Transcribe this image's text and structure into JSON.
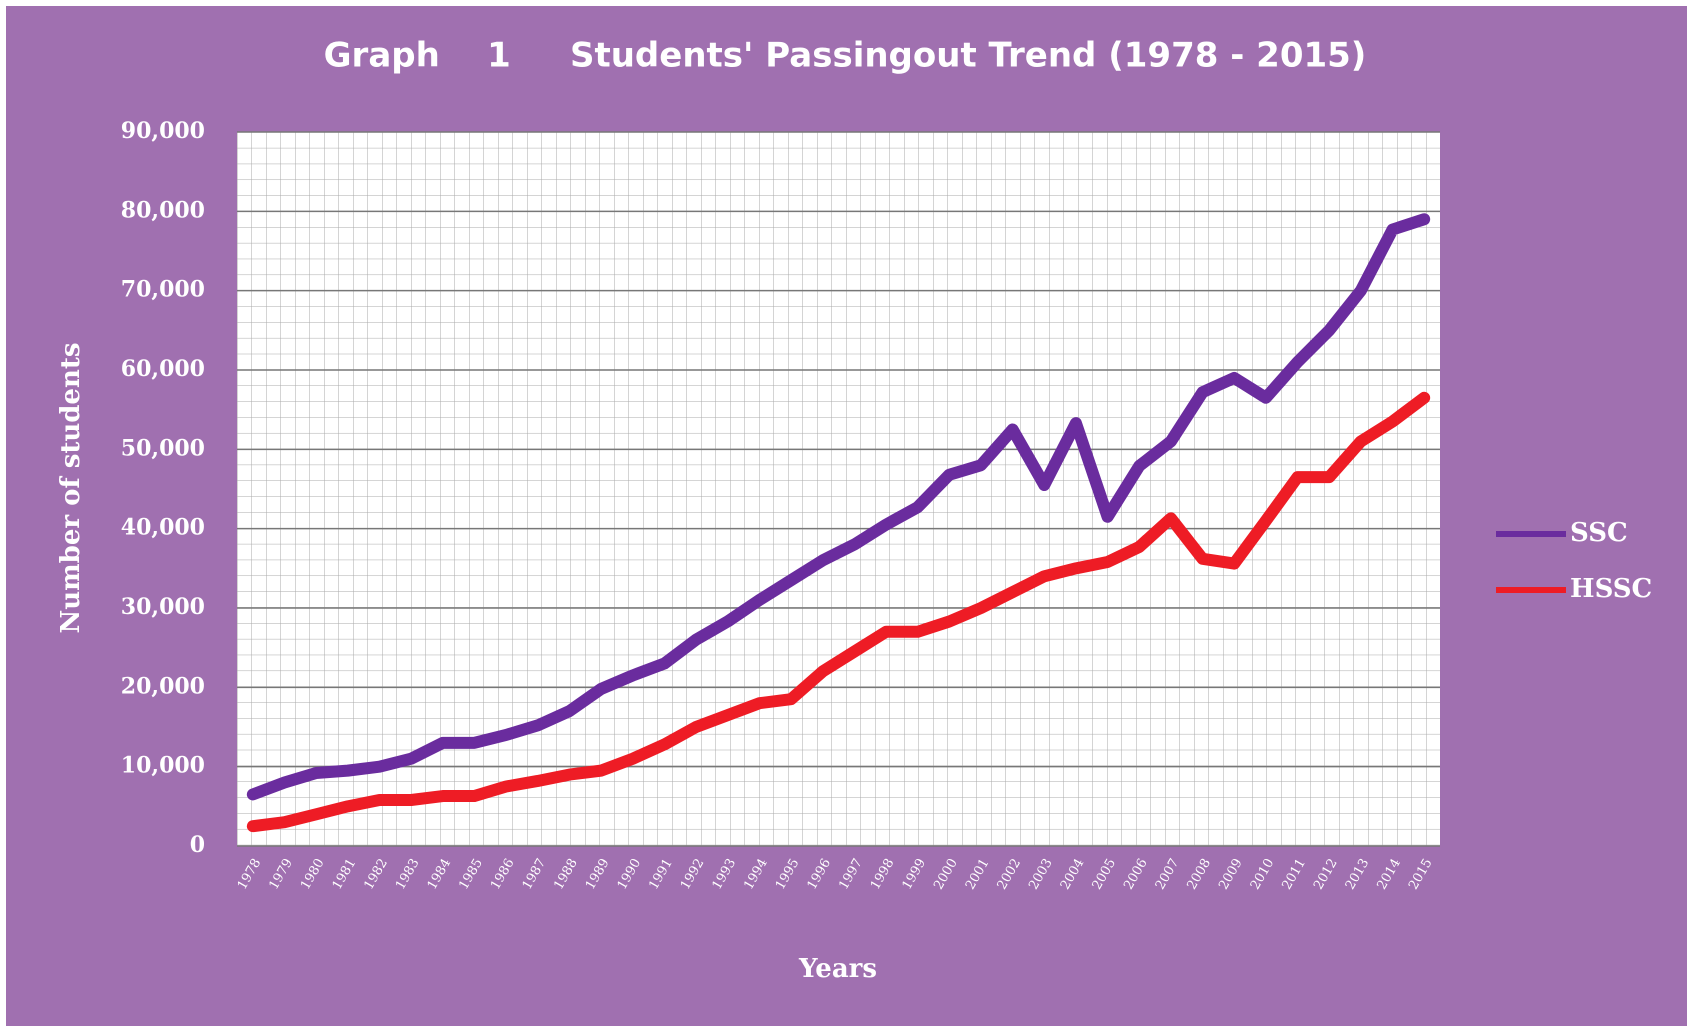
{
  "chart_data": {
    "type": "line",
    "title": "Graph    1     Students' Passingout Trend (1978 - 2015)",
    "y_label": "Number of students",
    "x_label": "Years",
    "categories": [
      "1978",
      "1979",
      "1980",
      "1981",
      "1982",
      "1983",
      "1984",
      "1985",
      "1986",
      "1987",
      "1988",
      "1989",
      "1990",
      "1991",
      "1992",
      "1993",
      "1994",
      "1995",
      "1996",
      "1997",
      "1998",
      "1999",
      "2000",
      "2001",
      "2002",
      "2003",
      "2004",
      "2005",
      "2006",
      "2007",
      "2008",
      "2009",
      "2010",
      "2011",
      "2012",
      "2013",
      "2014",
      "2015"
    ],
    "series": [
      {
        "name": "SSC",
        "color": "#6a2c9e",
        "values": [
          6500,
          8000,
          9200,
          9500,
          10000,
          11000,
          13000,
          13000,
          14000,
          15200,
          17000,
          19800,
          21500,
          23000,
          26000,
          28300,
          31000,
          33500,
          36000,
          38000,
          40500,
          42700,
          46800,
          48000,
          52500,
          45500,
          53300,
          41500,
          47900,
          51000,
          57200,
          59000,
          56500,
          61000,
          65000,
          70000,
          77700,
          79000
        ]
      },
      {
        "name": "HSSC",
        "color": "#ee1c25",
        "values": [
          2500,
          3000,
          4000,
          5000,
          5800,
          5800,
          6300,
          6300,
          7500,
          8200,
          9000,
          9500,
          11000,
          12800,
          15000,
          16500,
          18000,
          18500,
          22000,
          24500,
          27000,
          27000,
          28300,
          30000,
          32000,
          34000,
          35000,
          35800,
          37700,
          41300,
          36200,
          35600,
          41000,
          46500,
          46500,
          51000,
          53500,
          56500
        ]
      }
    ],
    "ylim": [
      0,
      90000
    ],
    "yticks": [
      0,
      {
        "value": 10000,
        "label": "10,000"
      },
      {
        "value": 20000,
        "label": "20,000"
      },
      {
        "value": 30000,
        "label": "30,000"
      },
      {
        "value": 40000,
        "label": "40,000"
      },
      {
        "value": 50000,
        "label": "50,000"
      },
      {
        "value": 60000,
        "label": "60,000"
      },
      {
        "value": 70000,
        "label": "70,000"
      },
      {
        "value": 80000,
        "label": "80,000"
      },
      {
        "value": 90000,
        "label": "90,000"
      }
    ],
    "grid": true,
    "legend": "right"
  }
}
